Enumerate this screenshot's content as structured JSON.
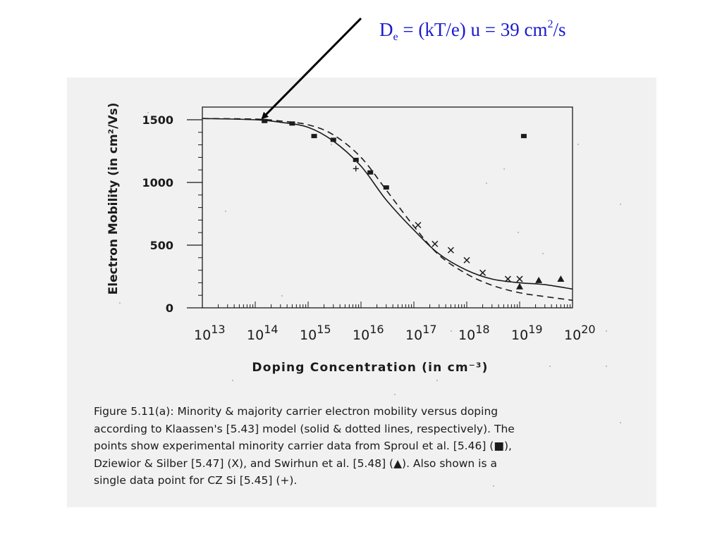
{
  "annotation": {
    "base": "D",
    "subscript": "e",
    "mid": " = (kT/e) u = 39 cm",
    "superscript": "2",
    "tail": "/s"
  },
  "colors": {
    "annotation": "#1a1ad0",
    "scan_background": "#f1f1f1",
    "ink": "#1b1b1b"
  },
  "caption": {
    "lines": [
      "Figure 5.11(a):  Minority & majority carrier electron mobility versus doping",
      "according to Klaassen's  [5.43] model (solid & dotted lines, respectively).  The",
      "points show experimental minority carrier data from Sproul et al. [5.46] (■),",
      "Dziewior & Silber [5.47] (X), and Swirhun et al. [5.48] (▲).  Also shown is a",
      "single data point for CZ Si [5.45] (+)."
    ]
  },
  "chart_data": {
    "type": "line",
    "xlabel": "Doping Concentration (in cm⁻³)",
    "ylabel": "Electron Mobility (in cm²/Vs)",
    "xscale": "log",
    "xlim": [
      10000000000000.0,
      1e+20
    ],
    "ylim": [
      0,
      1500
    ],
    "x_ticks": [
      {
        "value": 10000000000000.0,
        "base": "10",
        "exp": "13"
      },
      {
        "value": 100000000000000.0,
        "base": "10",
        "exp": "14"
      },
      {
        "value": 1000000000000000.0,
        "base": "10",
        "exp": "15"
      },
      {
        "value": 1e+16,
        "base": "10",
        "exp": "16"
      },
      {
        "value": 1e+17,
        "base": "10",
        "exp": "17"
      },
      {
        "value": 1e+18,
        "base": "10",
        "exp": "18"
      },
      {
        "value": 1e+19,
        "base": "10",
        "exp": "19"
      },
      {
        "value": 1e+20,
        "base": "10",
        "exp": "20"
      }
    ],
    "y_ticks": [
      {
        "value": 0,
        "label": "0"
      },
      {
        "value": 500,
        "label": "500"
      },
      {
        "value": 1000,
        "label": "1000"
      },
      {
        "value": 1500,
        "label": "1500"
      }
    ],
    "series": [
      {
        "style": "solid",
        "x": [
          10000000000000.0,
          100000000000000.0,
          300000000000000.0,
          1000000000000000.0,
          3000000000000000.0,
          1e+16,
          3e+16,
          1e+17,
          3e+17,
          1e+18,
          3e+18,
          1e+19,
          3e+19,
          1e+20
        ],
        "y": [
          1510,
          1500,
          1480,
          1440,
          1330,
          1130,
          860,
          620,
          430,
          300,
          230,
          200,
          185,
          150
        ]
      },
      {
        "style": "dashed",
        "x": [
          10000000000000.0,
          100000000000000.0,
          300000000000000.0,
          1000000000000000.0,
          3000000000000000.0,
          1e+16,
          3e+16,
          1e+17,
          3e+17,
          1e+18,
          3e+18,
          1e+19,
          3e+19,
          1e+20
        ],
        "y": [
          1510,
          1505,
          1490,
          1460,
          1380,
          1200,
          940,
          650,
          420,
          270,
          180,
          120,
          90,
          60
        ]
      }
    ],
    "points": {
      "square": [
        [
          150000000000000.0,
          1490
        ],
        [
          500000000000000.0,
          1470
        ],
        [
          1300000000000000.0,
          1370
        ],
        [
          3000000000000000.0,
          1340
        ],
        [
          8000000000000000.0,
          1180
        ],
        [
          1.5e+16,
          1080
        ],
        [
          3e+16,
          960
        ],
        [
          1.2e+19,
          1370
        ]
      ],
      "x_mark": [
        [
          1.2e+17,
          660
        ],
        [
          2.5e+17,
          510
        ],
        [
          5e+17,
          460
        ],
        [
          1e+18,
          380
        ],
        [
          2e+18,
          280
        ],
        [
          6e+18,
          230
        ],
        [
          1e+19,
          230
        ]
      ],
      "triangle": [
        [
          1e+19,
          170
        ],
        [
          2.3e+19,
          220
        ],
        [
          6e+19,
          230
        ]
      ],
      "plus": [
        [
          8000000000000000.0,
          1110
        ]
      ]
    },
    "arrow_target": [
      120000000000000.0,
      1510
    ]
  }
}
